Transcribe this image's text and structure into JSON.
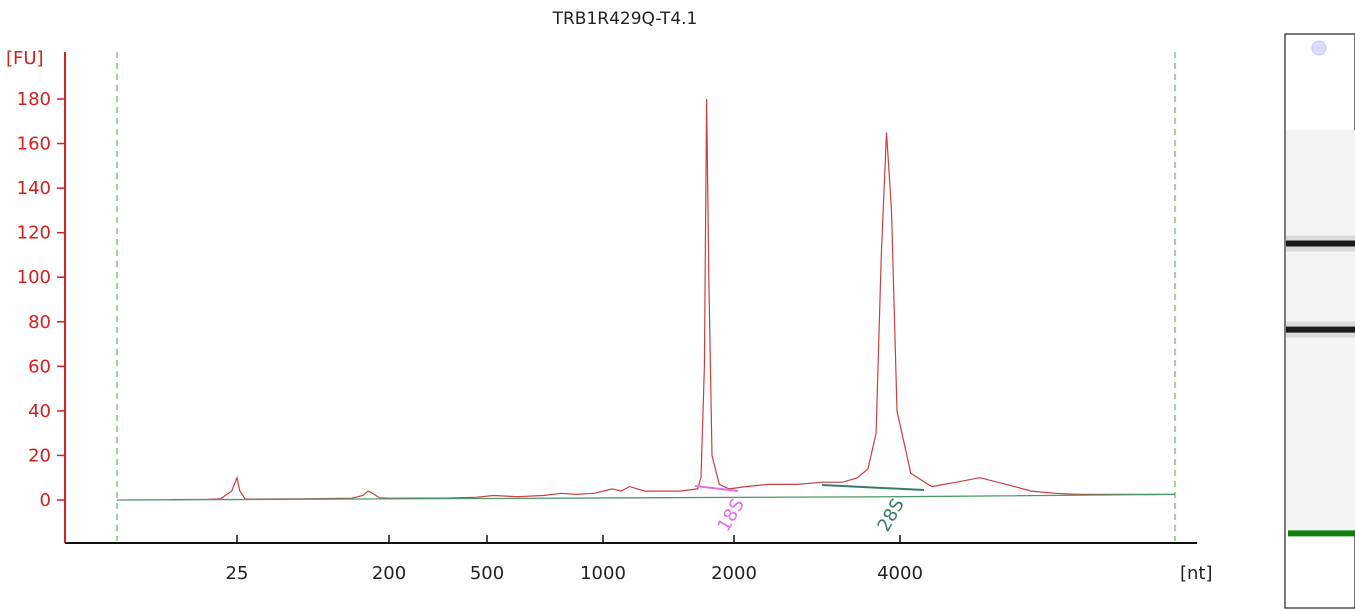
{
  "chart_data": {
    "type": "line",
    "title": "TRB1R429Q-T4.1",
    "ylabel": "[FU]",
    "xlabel": "[nt]",
    "ylim": [
      -20,
      190
    ],
    "yticks": [
      0,
      20,
      40,
      60,
      80,
      100,
      120,
      140,
      160,
      180
    ],
    "xticks": [
      25,
      200,
      500,
      1000,
      2000,
      4000
    ],
    "grid": false,
    "series": [
      {
        "color": "#c84040",
        "points": [
          [
            15,
            0.2
          ],
          [
            20,
            0.3
          ],
          [
            22,
            0.5
          ],
          [
            24,
            4
          ],
          [
            25,
            10
          ],
          [
            26,
            4
          ],
          [
            28,
            0.4
          ],
          [
            60,
            0.5
          ],
          [
            120,
            0.8
          ],
          [
            140,
            2
          ],
          [
            150,
            4
          ],
          [
            160,
            3
          ],
          [
            175,
            1
          ],
          [
            200,
            0.8
          ],
          [
            350,
            0.9
          ],
          [
            450,
            1.2
          ],
          [
            520,
            2
          ],
          [
            600,
            1.5
          ],
          [
            700,
            2
          ],
          [
            780,
            3
          ],
          [
            850,
            2.5
          ],
          [
            950,
            3
          ],
          [
            1050,
            5
          ],
          [
            1100,
            4
          ],
          [
            1150,
            6
          ],
          [
            1250,
            4
          ],
          [
            1500,
            4
          ],
          [
            1650,
            5
          ],
          [
            1680,
            10
          ],
          [
            1710,
            60
          ],
          [
            1730,
            180
          ],
          [
            1750,
            100
          ],
          [
            1780,
            20
          ],
          [
            1850,
            7
          ],
          [
            1950,
            5
          ],
          [
            2100,
            6
          ],
          [
            2300,
            7
          ],
          [
            2600,
            7
          ],
          [
            2900,
            8
          ],
          [
            3150,
            8
          ],
          [
            3350,
            10
          ],
          [
            3500,
            14
          ],
          [
            3620,
            30
          ],
          [
            3700,
            110
          ],
          [
            3780,
            165
          ],
          [
            3860,
            130
          ],
          [
            3950,
            40
          ],
          [
            4100,
            12
          ],
          [
            4300,
            6
          ],
          [
            4550,
            8
          ],
          [
            4800,
            10
          ],
          [
            5100,
            7
          ],
          [
            5400,
            4
          ],
          [
            5700,
            3
          ],
          [
            6000,
            2.5
          ],
          [
            7500,
            2.5
          ]
        ]
      },
      {
        "color": "#4a9a6a",
        "points": [
          [
            10,
            0
          ],
          [
            4000,
            1.5
          ],
          [
            7500,
            2.5
          ]
        ]
      }
    ],
    "peak_labels": [
      {
        "text": "18S",
        "x": 2000,
        "color": "#e070e0"
      },
      {
        "text": "28S",
        "x": 3900,
        "color": "#3a7a6a"
      }
    ],
    "gel_bands": [
      {
        "fraction": 0.365,
        "intensity": "strong"
      },
      {
        "fraction": 0.515,
        "intensity": "strong"
      },
      {
        "fraction": 0.87,
        "intensity": "marker"
      }
    ]
  }
}
